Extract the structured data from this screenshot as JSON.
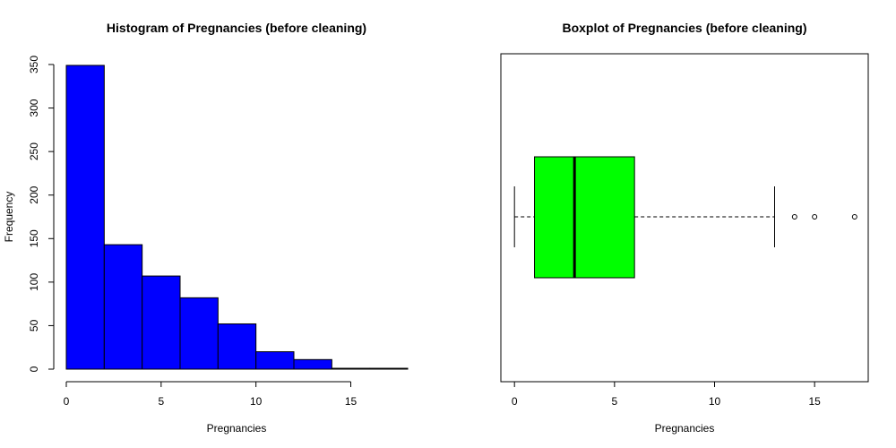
{
  "chart_data": [
    {
      "type": "bar",
      "subtype": "histogram",
      "title": "Histogram of Pregnancies (before cleaning)",
      "xlabel": "Pregnancies",
      "ylabel": "Frequency",
      "bin_edges": [
        0,
        2,
        4,
        6,
        8,
        10,
        12,
        14,
        16,
        18
      ],
      "values": [
        349,
        143,
        107,
        82,
        52,
        20,
        11,
        1,
        1
      ],
      "bar_color": "#0000FF",
      "xticks": [
        0,
        5,
        10,
        15
      ],
      "yticks": [
        0,
        50,
        100,
        150,
        200,
        250,
        300,
        350
      ],
      "xlim": [
        0,
        18
      ],
      "ylim": [
        0,
        350
      ]
    },
    {
      "type": "boxplot",
      "orientation": "horizontal",
      "title": "Boxplot of Pregnancies (before cleaning)",
      "xlabel": "Pregnancies",
      "whisker_low": 0,
      "q1": 1,
      "median": 3,
      "q3": 6,
      "whisker_high": 13,
      "outliers": [
        14,
        15,
        17
      ],
      "box_color": "#00FF00",
      "xticks": [
        0,
        5,
        10,
        15
      ],
      "xlim": [
        -0.68,
        17.68
      ]
    }
  ]
}
